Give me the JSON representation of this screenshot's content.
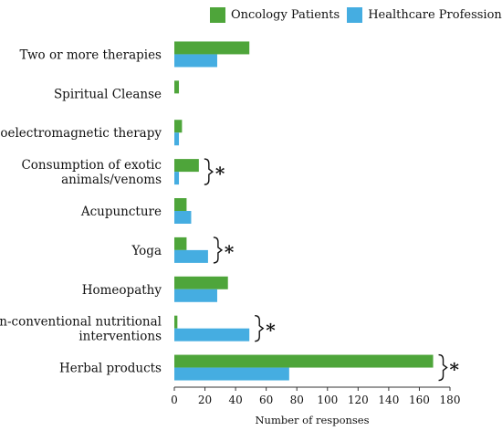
{
  "chart_data": {
    "type": "bar",
    "orientation": "horizontal",
    "categories": [
      "Two or more therapies",
      "Spiritual Cleanse",
      "Bioelectromagnetic therapy",
      "Consumption of exotic animals/venoms",
      "Acupuncture",
      "Yoga",
      "Homeopathy",
      "Non-conventional nutritional interventions",
      "Herbal products"
    ],
    "category_lines": [
      [
        "Two or more therapies"
      ],
      [
        "Spiritual Cleanse"
      ],
      [
        "Bioelectromagnetic therapy"
      ],
      [
        "Consumption of exotic",
        "animals/venoms"
      ],
      [
        "Acupuncture"
      ],
      [
        "Yoga"
      ],
      [
        "Homeopathy"
      ],
      [
        "Non-conventional nutritional",
        "interventions"
      ],
      [
        "Herbal products"
      ]
    ],
    "series": [
      {
        "name": "Oncology Patients",
        "color": "#4ea53a",
        "values": [
          49,
          3,
          5,
          16,
          8,
          8,
          35,
          2,
          169
        ]
      },
      {
        "name": "Healthcare Professionals",
        "color": "#45ade1",
        "values": [
          28,
          0,
          3,
          3,
          11,
          22,
          28,
          49,
          75
        ]
      }
    ],
    "significance": [
      {
        "category": "Consumption of exotic animals/venoms",
        "mark": "*"
      },
      {
        "category": "Yoga",
        "mark": "*"
      },
      {
        "category": "Non-conventional nutritional interventions",
        "mark": "*"
      },
      {
        "category": "Herbal products",
        "mark": "*"
      }
    ],
    "xlabel": "Number of responses",
    "ylabel": "",
    "xlim": [
      0,
      180
    ],
    "xticks": [
      0,
      20,
      40,
      60,
      80,
      100,
      120,
      140,
      160,
      180
    ],
    "legend_position": "top-right",
    "grid": false
  }
}
